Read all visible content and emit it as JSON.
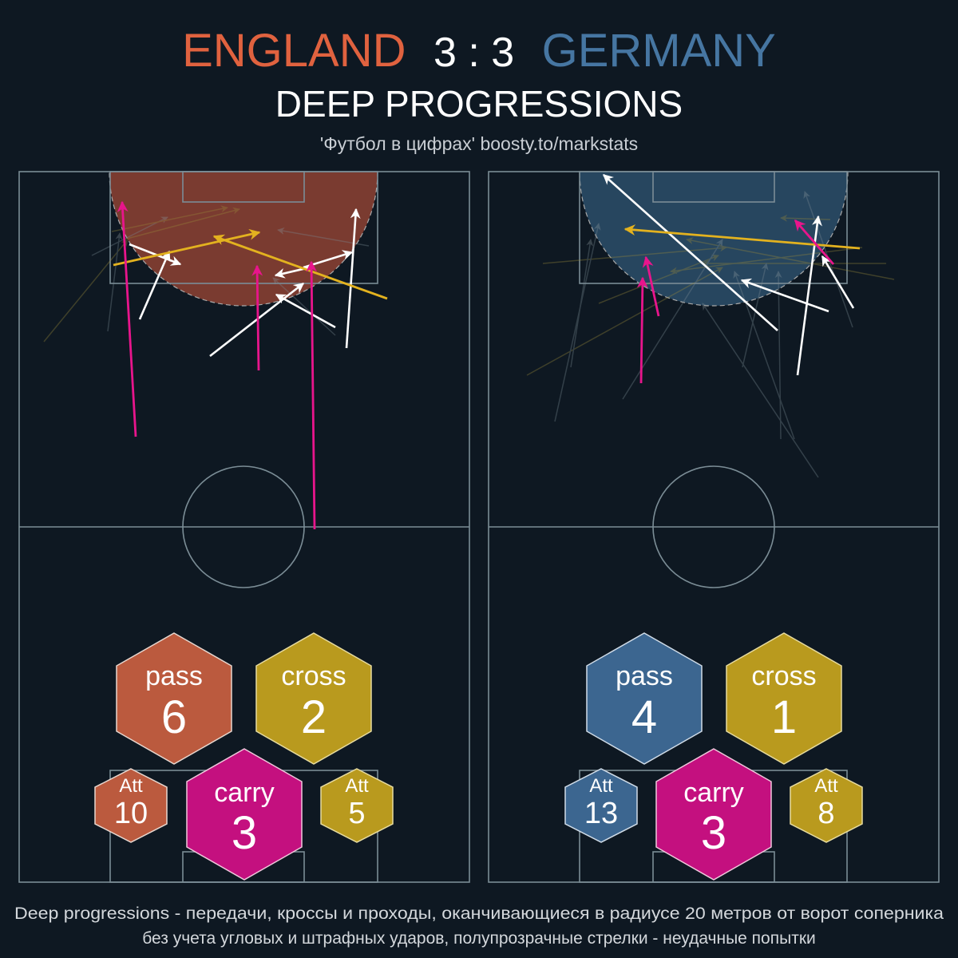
{
  "header": {
    "home_team": "ENGLAND",
    "score": "3 : 3",
    "away_team": "GERMANY",
    "subtitle": "DEEP PROGRESSIONS",
    "credit": "'Футбол в цифрах' boosty.to/markstats"
  },
  "colors": {
    "background": "#0e1822",
    "home": "#e0623f",
    "away": "#4676a2",
    "home_hex": "#bb5a3e",
    "away_hex": "#3c6690",
    "cross": "#b99a1e",
    "carry": "#c4107f",
    "success_pass": "#ffffff",
    "success_cross": "#e3b21f",
    "success_carry": "#e8158c",
    "failed": "#6c7a82"
  },
  "stats": {
    "home": {
      "pass": {
        "label": "pass",
        "value": "6"
      },
      "cross": {
        "label": "cross",
        "value": "2"
      },
      "carry": {
        "label": "carry",
        "value": "3"
      },
      "pass_att": {
        "label": "Att",
        "value": "10"
      },
      "cross_att": {
        "label": "Att",
        "value": "5"
      }
    },
    "away": {
      "pass": {
        "label": "pass",
        "value": "4"
      },
      "cross": {
        "label": "cross",
        "value": "1"
      },
      "carry": {
        "label": "carry",
        "value": "3"
      },
      "pass_att": {
        "label": "Att",
        "value": "13"
      },
      "cross_att": {
        "label": "Att",
        "value": "8"
      }
    }
  },
  "footnote": {
    "line1": "Deep progressions - передачи, кроссы и проходы, оканчивающиеся в радиусе 20 метров от ворот соперника",
    "line2": "без учета угловых и штрафных ударов, полупрозрачные стрелки - неудачные попытки"
  }
}
